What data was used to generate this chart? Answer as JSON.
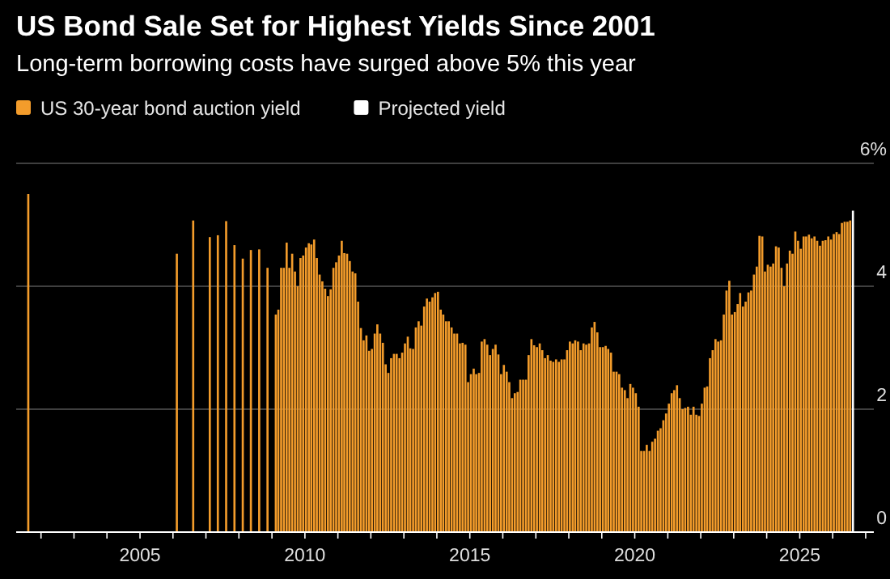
{
  "chart_data": {
    "type": "bar",
    "title": "US Bond Sale Set for Highest Yields Since 2001",
    "subtitle": "Long-term borrowing costs have surged above 5% this year",
    "series": [
      {
        "name": "US 30-year bond auction yield",
        "color": "#f39c2b",
        "x": [
          "2001-08",
          "2006-02",
          "2006-08",
          "2007-02",
          "2007-05",
          "2007-08",
          "2007-11",
          "2008-02",
          "2008-05",
          "2008-08",
          "2008-11",
          "2009-02",
          "2009-03",
          "2009-04",
          "2009-05",
          "2009-06",
          "2009-07",
          "2009-08",
          "2009-09",
          "2009-10",
          "2009-11",
          "2009-12",
          "2010-01",
          "2010-02",
          "2010-03",
          "2010-04",
          "2010-05",
          "2010-06",
          "2010-07",
          "2010-08",
          "2010-09",
          "2010-10",
          "2010-11",
          "2010-12",
          "2011-01",
          "2011-02",
          "2011-03",
          "2011-04",
          "2011-05",
          "2011-06",
          "2011-07",
          "2011-08",
          "2011-09",
          "2011-10",
          "2011-11",
          "2011-12",
          "2012-01",
          "2012-02",
          "2012-03",
          "2012-04",
          "2012-05",
          "2012-06",
          "2012-07",
          "2012-08",
          "2012-09",
          "2012-10",
          "2012-11",
          "2012-12",
          "2013-01",
          "2013-02",
          "2013-03",
          "2013-04",
          "2013-05",
          "2013-06",
          "2013-07",
          "2013-08",
          "2013-09",
          "2013-10",
          "2013-11",
          "2013-12",
          "2014-01",
          "2014-02",
          "2014-03",
          "2014-04",
          "2014-05",
          "2014-06",
          "2014-07",
          "2014-08",
          "2014-09",
          "2014-10",
          "2014-11",
          "2014-12",
          "2015-01",
          "2015-02",
          "2015-03",
          "2015-04",
          "2015-05",
          "2015-06",
          "2015-07",
          "2015-08",
          "2015-09",
          "2015-10",
          "2015-11",
          "2015-12",
          "2016-01",
          "2016-02",
          "2016-03",
          "2016-04",
          "2016-05",
          "2016-06",
          "2016-07",
          "2016-08",
          "2016-09",
          "2016-10",
          "2016-11",
          "2016-12",
          "2017-01",
          "2017-02",
          "2017-03",
          "2017-04",
          "2017-05",
          "2017-06",
          "2017-07",
          "2017-08",
          "2017-09",
          "2017-10",
          "2017-11",
          "2017-12",
          "2018-01",
          "2018-02",
          "2018-03",
          "2018-04",
          "2018-05",
          "2018-06",
          "2018-07",
          "2018-08",
          "2018-09",
          "2018-10",
          "2018-11",
          "2018-12",
          "2019-01",
          "2019-02",
          "2019-03",
          "2019-04",
          "2019-05",
          "2019-06",
          "2019-07",
          "2019-08",
          "2019-09",
          "2019-10",
          "2019-11",
          "2019-12",
          "2020-01",
          "2020-02",
          "2020-03",
          "2020-04",
          "2020-05",
          "2020-06",
          "2020-07",
          "2020-08",
          "2020-09",
          "2020-10",
          "2020-11",
          "2020-12",
          "2021-01",
          "2021-02",
          "2021-03",
          "2021-04",
          "2021-05",
          "2021-06",
          "2021-07",
          "2021-08",
          "2021-09",
          "2021-10",
          "2021-11",
          "2021-12",
          "2022-01",
          "2022-02",
          "2022-03",
          "2022-04",
          "2022-05",
          "2022-06",
          "2022-07",
          "2022-08",
          "2022-09",
          "2022-10",
          "2022-11",
          "2022-12",
          "2023-01",
          "2023-02",
          "2023-03",
          "2023-04",
          "2023-05",
          "2023-06",
          "2023-07",
          "2023-08",
          "2023-09",
          "2023-10",
          "2023-11",
          "2023-12",
          "2024-01",
          "2024-02",
          "2024-03",
          "2024-04",
          "2024-05",
          "2024-06",
          "2024-07",
          "2024-08",
          "2024-09",
          "2024-10",
          "2024-11",
          "2024-12",
          "2025-01",
          "2025-02",
          "2025-03",
          "2025-04",
          "2025-05",
          "2025-06",
          "2025-07",
          "2025-08",
          "2025-09",
          "2025-10",
          "2025-11",
          "2025-12",
          "2026-01",
          "2026-02",
          "2026-03",
          "2026-04",
          "2026-05",
          "2026-06",
          "2026-07"
        ],
        "values": [
          5.5,
          4.53,
          5.07,
          4.8,
          4.83,
          5.06,
          4.67,
          4.45,
          4.59,
          4.6,
          4.3,
          3.54,
          3.62,
          4.3,
          4.3,
          4.71,
          4.3,
          4.53,
          4.24,
          4.0,
          4.46,
          4.5,
          4.63,
          4.7,
          4.68,
          4.76,
          4.46,
          4.19,
          4.08,
          3.96,
          3.84,
          3.95,
          4.3,
          4.39,
          4.5,
          4.74,
          4.54,
          4.53,
          4.41,
          4.24,
          4.21,
          3.75,
          3.32,
          3.12,
          3.2,
          2.95,
          2.98,
          3.23,
          3.38,
          3.23,
          3.08,
          2.73,
          2.59,
          2.83,
          2.9,
          2.9,
          2.83,
          2.92,
          3.07,
          3.18,
          2.99,
          2.98,
          3.33,
          3.43,
          3.36,
          3.67,
          3.8,
          3.75,
          3.82,
          3.89,
          3.91,
          3.62,
          3.54,
          3.43,
          3.43,
          3.33,
          3.23,
          3.23,
          3.07,
          3.08,
          3.05,
          2.44,
          2.57,
          2.66,
          2.57,
          2.59,
          3.1,
          3.14,
          3.05,
          2.88,
          2.98,
          3.05,
          2.89,
          2.57,
          2.72,
          2.61,
          2.44,
          2.18,
          2.26,
          2.28,
          2.48,
          2.48,
          2.48,
          2.88,
          3.14,
          3.04,
          3.01,
          3.07,
          2.96,
          2.83,
          2.88,
          2.79,
          2.77,
          2.81,
          2.77,
          2.81,
          2.81,
          2.96,
          3.1,
          3.07,
          3.12,
          3.1,
          2.96,
          3.07,
          3.05,
          3.07,
          3.33,
          3.42,
          3.25,
          3.01,
          3.01,
          3.03,
          2.98,
          2.92,
          2.61,
          2.61,
          2.57,
          2.35,
          2.31,
          2.18,
          2.41,
          2.35,
          2.26,
          2.04,
          1.32,
          1.32,
          1.42,
          1.32,
          1.47,
          1.52,
          1.65,
          1.69,
          1.82,
          1.93,
          2.09,
          2.26,
          2.31,
          2.39,
          2.18,
          2.0,
          2.02,
          2.04,
          1.91,
          2.04,
          1.91,
          1.89,
          2.09,
          2.35,
          2.37,
          2.83,
          2.96,
          3.14,
          3.1,
          3.12,
          3.54,
          3.93,
          4.09,
          3.54,
          3.58,
          3.71,
          3.89,
          3.67,
          3.75,
          3.9,
          3.93,
          4.19,
          4.32,
          4.82,
          4.81,
          4.24,
          4.35,
          4.32,
          4.37,
          4.65,
          4.63,
          4.3,
          4.0,
          4.37,
          4.58,
          4.53,
          4.89,
          4.74,
          4.61,
          4.81,
          4.81,
          4.84,
          4.78,
          4.81,
          4.74,
          4.66,
          4.74,
          4.75,
          4.81,
          4.76,
          4.85,
          4.88,
          4.85,
          5.03,
          5.05,
          5.05,
          5.07
        ]
      },
      {
        "name": "Projected yield",
        "color": "#ffffff",
        "x": [
          "2026-08"
        ],
        "values": [
          5.23
        ]
      }
    ],
    "xlim": [
      "2001-04",
      "2027-04"
    ],
    "xticks": [
      {
        "value": "2002",
        "label": null
      },
      {
        "value": "2003",
        "label": null
      },
      {
        "value": "2004",
        "label": null
      },
      "2005",
      {
        "value": "2006",
        "label": null
      },
      {
        "value": "2007",
        "label": null
      },
      {
        "value": "2008",
        "label": null
      },
      {
        "value": "2009",
        "label": null
      },
      "2010",
      {
        "value": "2011",
        "label": null
      },
      {
        "value": "2012",
        "label": null
      },
      {
        "value": "2013",
        "label": null
      },
      {
        "value": "2014",
        "label": null
      },
      "2015",
      {
        "value": "2016",
        "label": null
      },
      {
        "value": "2017",
        "label": null
      },
      {
        "value": "2018",
        "label": null
      },
      {
        "value": "2019",
        "label": null
      },
      "2020",
      {
        "value": "2021",
        "label": null
      },
      {
        "value": "2022",
        "label": null
      },
      {
        "value": "2023",
        "label": null
      },
      {
        "value": "2024",
        "label": null
      },
      "2025",
      {
        "value": "2026",
        "label": null
      },
      {
        "value": "2027",
        "label": null
      }
    ],
    "ylim": [
      0,
      6
    ],
    "yticks": [
      0,
      2,
      4,
      {
        "value": 6,
        "label": "6%"
      }
    ],
    "grid": "y",
    "legend": "top left"
  }
}
